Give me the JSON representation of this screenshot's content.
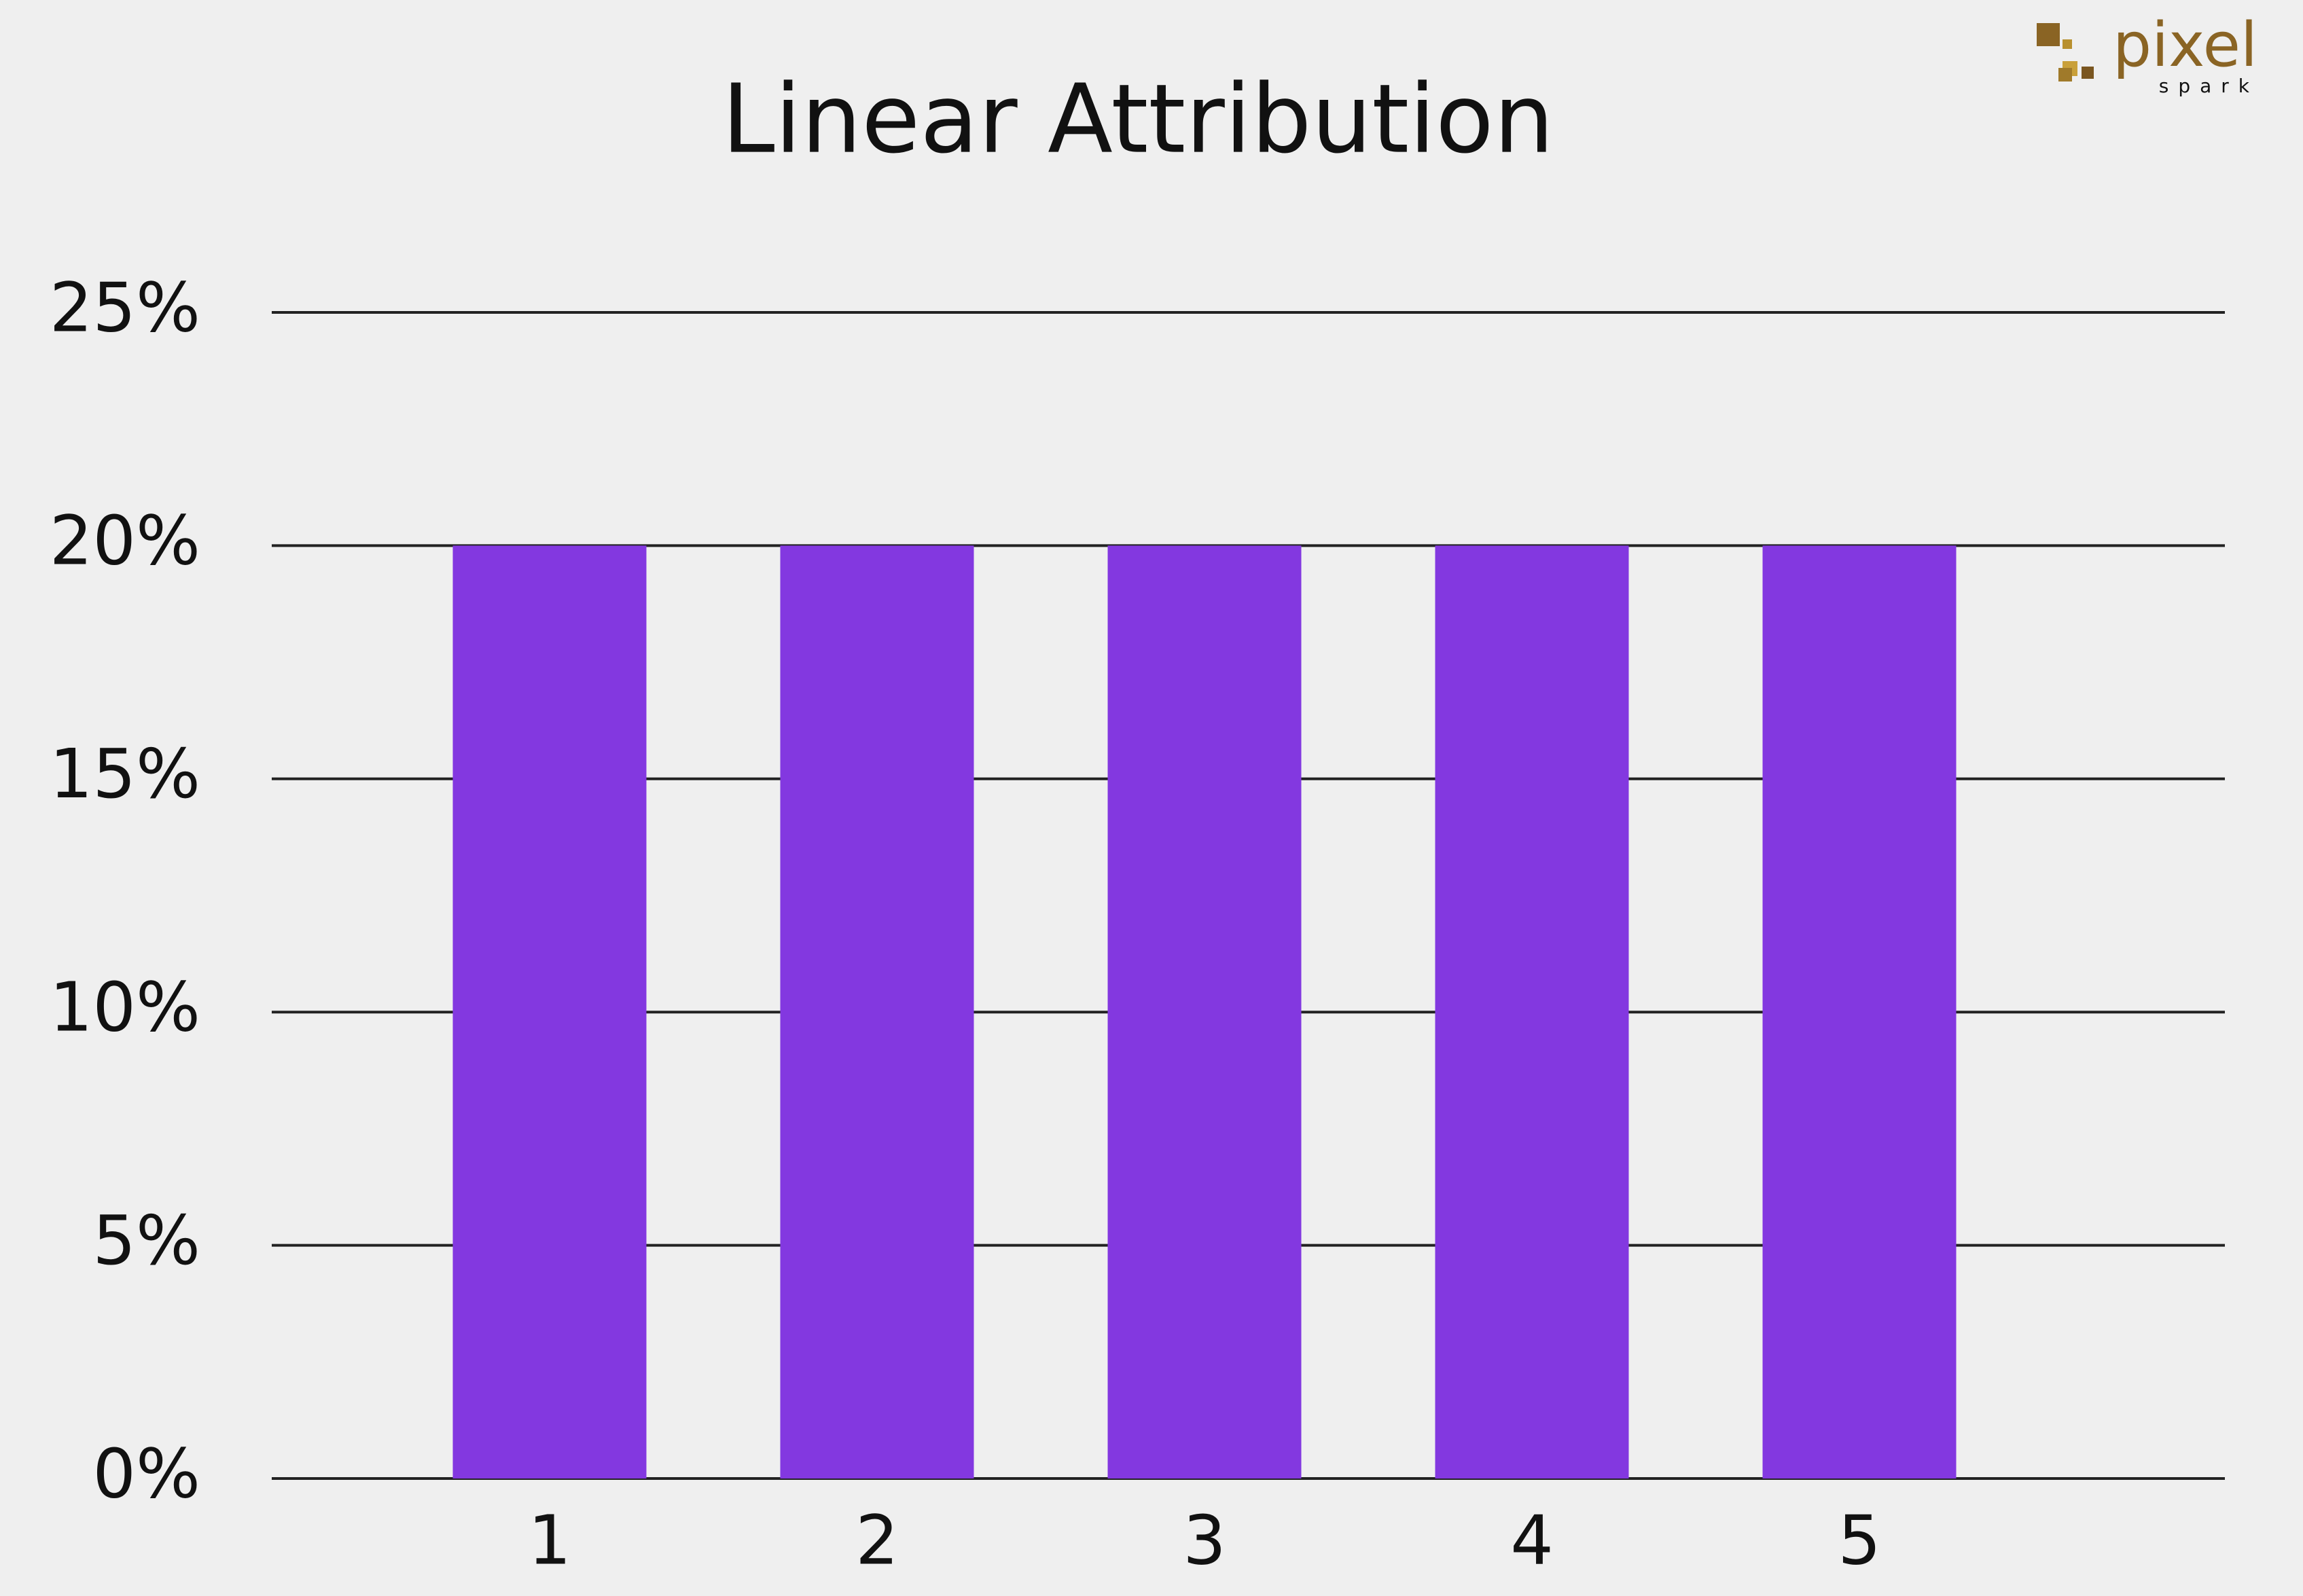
{
  "chart_data": {
    "type": "bar",
    "title": "Linear Attribution",
    "categories": [
      "1",
      "2",
      "3",
      "4",
      "5"
    ],
    "values": [
      20,
      20,
      20,
      20,
      20
    ],
    "color": "#8338e0",
    "ylim": [
      0,
      25
    ],
    "yticks": [
      {
        "value": 0,
        "label": "0%"
      },
      {
        "value": 5,
        "label": "5%"
      },
      {
        "value": 10,
        "label": "10%"
      },
      {
        "value": 15,
        "label": "15%"
      },
      {
        "value": 20,
        "label": "20%"
      },
      {
        "value": 25,
        "label": "25%"
      }
    ],
    "grid": true
  },
  "logo": {
    "name": "pixel",
    "tagline": "spark"
  }
}
